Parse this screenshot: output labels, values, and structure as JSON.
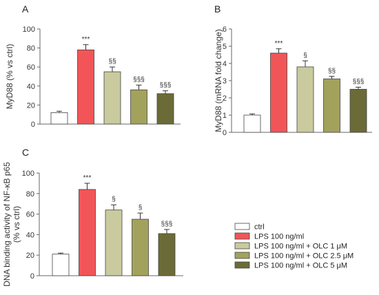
{
  "legend": [
    {
      "label": "ctrl",
      "color": "#ffffff"
    },
    {
      "label": "LPS 100 ng/ml",
      "color": "#f25558"
    },
    {
      "label": "LPS 100 ng/ml + OLC 1 μM",
      "color": "#c9ca9e"
    },
    {
      "label": "LPS 100 ng/ml + OLC 2.5 μM",
      "color": "#a2a25d"
    },
    {
      "label": "LPS 100 ng/ml + OLC 5 μM",
      "color": "#6b6b38"
    }
  ],
  "chart_data": [
    {
      "panel": "A",
      "type": "bar",
      "ylabel": "MyD88 (% vs ctrl)",
      "ylim": [
        0,
        100
      ],
      "yticks": [
        0,
        20,
        40,
        60,
        80,
        100
      ],
      "categories": [
        "ctrl",
        "LPS 100 ng/ml",
        "LPS 100 ng/ml + OLC 1 μM",
        "LPS 100 ng/ml + OLC 2.5 μM",
        "LPS 100 ng/ml + OLC 5 μM"
      ],
      "values": [
        12,
        78,
        55,
        36,
        32
      ],
      "errors": [
        1.5,
        5.5,
        5,
        5,
        3
      ],
      "annotations": [
        "",
        "***",
        "§§",
        "§§§",
        "§§§"
      ]
    },
    {
      "panel": "B",
      "type": "bar",
      "ylabel": "MyD88 (mRNA fold change)",
      "ylim": [
        0,
        6
      ],
      "yticks": [
        0,
        1,
        2,
        3,
        4,
        5,
        6
      ],
      "categories": [
        "ctrl",
        "LPS 100 ng/ml",
        "LPS 100 ng/ml + OLC 1 μM",
        "LPS 100 ng/ml + OLC 2.5 μM",
        "LPS 100 ng/ml + OLC 5 μM"
      ],
      "values": [
        1.0,
        4.6,
        3.8,
        3.1,
        2.5
      ],
      "errors": [
        0.07,
        0.25,
        0.35,
        0.15,
        0.12
      ],
      "annotations": [
        "",
        "***",
        "§",
        "§§",
        "§§§"
      ]
    },
    {
      "panel": "C",
      "type": "bar",
      "ylabel": "DNA binding activity of NF-κB p65 (% vs ctrl)",
      "ylabel_lines": [
        "DNA binding activity of NF-κB p65",
        "(% vs ctrl)"
      ],
      "ylim": [
        0,
        100
      ],
      "yticks": [
        0,
        20,
        40,
        60,
        80,
        100
      ],
      "categories": [
        "ctrl",
        "LPS 100 ng/ml",
        "LPS 100 ng/ml + OLC 1 μM",
        "LPS 100 ng/ml + OLC 2.5 μM",
        "LPS 100 ng/ml + OLC 5 μM"
      ],
      "values": [
        21,
        84,
        64,
        55,
        41
      ],
      "errors": [
        1,
        6,
        5,
        6,
        4
      ],
      "annotations": [
        "",
        "***",
        "§",
        "§",
        "§§§"
      ]
    }
  ]
}
